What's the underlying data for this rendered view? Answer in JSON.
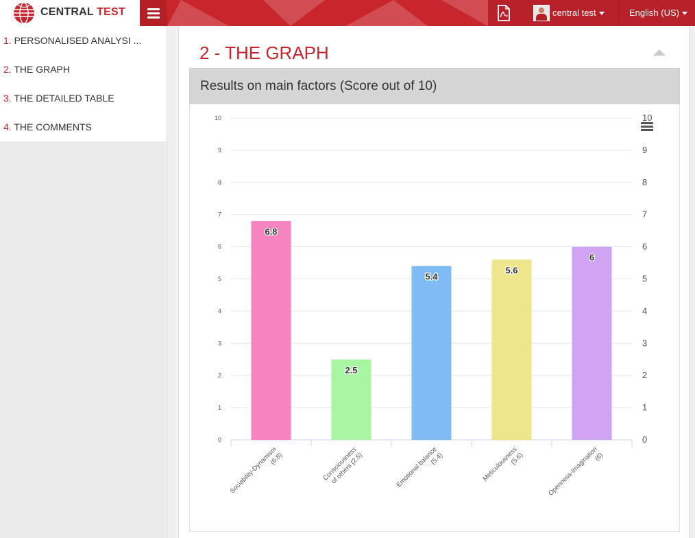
{
  "header": {
    "brand_left": "CENTRAL ",
    "brand_right": "TEST",
    "user_name": "central test",
    "language": "English (US)",
    "accent_color": "#c8252c"
  },
  "icons": {
    "logo": "globe-logo-icon",
    "menu": "hamburger-icon",
    "pdf": "pdf-icon",
    "avatar": "user-avatar",
    "collapse": "triangle-up-icon",
    "chart_menu": "hamburger-icon"
  },
  "sidebar": {
    "items": [
      {
        "num": "1.",
        "label": " PERSONALISED ANALYSI ..."
      },
      {
        "num": "2.",
        "label": " THE GRAPH"
      },
      {
        "num": "3.",
        "label": " THE DETAILED TABLE"
      },
      {
        "num": "4.",
        "label": " THE COMMENTS"
      }
    ]
  },
  "section": {
    "title": "2 - THE GRAPH",
    "panel_title": "Results on main factors (Score out of 10)"
  },
  "chart_data": {
    "type": "bar",
    "title": "Results on main factors (Score out of 10)",
    "categories": [
      [
        "Sociability-Dynamism",
        "(6.8)"
      ],
      [
        "Consciousness",
        "of others (2.5)"
      ],
      [
        "Emotional balance",
        "(5.4)"
      ],
      [
        "Meticulousness",
        "(5.6)"
      ],
      [
        "Openness-Imagination",
        "(6)"
      ]
    ],
    "values": [
      6.8,
      2.5,
      5.4,
      5.6,
      6
    ],
    "value_labels": [
      "6.8",
      "2.5",
      "5.4",
      "5.6",
      "6"
    ],
    "colors": [
      "#f783c0",
      "#a8f5a2",
      "#7fbcf5",
      "#eee68a",
      "#d0a4f2"
    ],
    "ylim": [
      0,
      10
    ],
    "yticks": [
      0,
      1,
      2,
      3,
      4,
      5,
      6,
      7,
      8,
      9,
      10
    ],
    "grid": true,
    "secondary_y_axis": true
  }
}
